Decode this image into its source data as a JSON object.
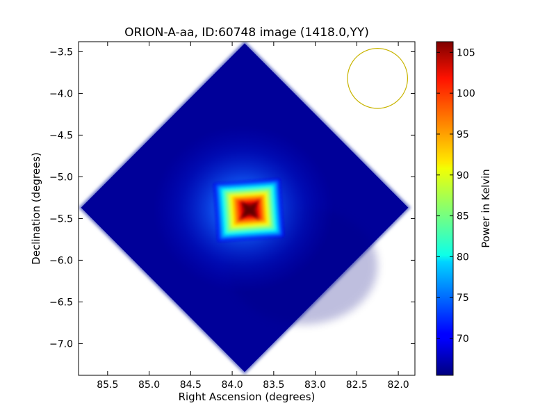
{
  "chart_data": {
    "type": "heatmap",
    "title": "ORION-A-aa, ID:60748 image (1418.0,YY)",
    "xlabel": "Right Ascension (degrees)",
    "ylabel": "Declination (degrees)",
    "xlim": [
      85.85,
      81.8
    ],
    "ylim": [
      -7.38,
      -3.38
    ],
    "xticks": [
      85.5,
      85.0,
      84.5,
      84.0,
      83.5,
      83.0,
      82.5,
      82.0
    ],
    "xtick_labels": [
      "85.5",
      "85.0",
      "84.5",
      "84.0",
      "83.5",
      "83.0",
      "82.5",
      "82.0"
    ],
    "yticks": [
      -3.5,
      -4.0,
      -4.5,
      -5.0,
      -5.5,
      -6.0,
      -6.5,
      -7.0
    ],
    "ytick_labels": [
      "−3.5",
      "−4.0",
      "−4.5",
      "−5.0",
      "−5.5",
      "−6.0",
      "−6.5",
      "−7.0"
    ],
    "colorbar": {
      "label": "Power in Kelvin",
      "min": 65.5,
      "max": 106.3,
      "ticks": [
        70,
        75,
        80,
        85,
        90,
        95,
        100,
        105
      ],
      "tick_labels": [
        "70",
        "75",
        "80",
        "85",
        "90",
        "95",
        "100",
        "105"
      ],
      "colormap": "jet"
    },
    "map": {
      "center_ra": 83.85,
      "center_dec": -5.37,
      "diamond_half_extent_ra": 2.0,
      "diamond_half_extent_dec": 2.0,
      "background_kelvin": 66.5,
      "peak_ra": 83.8,
      "peak_dec": -5.4,
      "peak_kelvin": 106.3,
      "hot_square_half_width_ra": 0.4,
      "hot_square_half_width_dec": 0.35
    },
    "beam_circle": {
      "center_ra": 82.25,
      "center_dec": -3.82,
      "radius_deg": 0.36,
      "color": "#c8b400"
    },
    "grid": false
  }
}
